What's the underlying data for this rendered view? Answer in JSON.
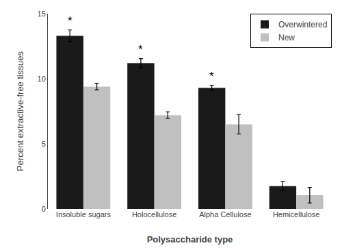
{
  "chart_data": {
    "type": "bar",
    "categories": [
      "Insoluble sugars",
      "Holocellulose",
      "Alpha Cellulose",
      "Hemicellulose"
    ],
    "series": [
      {
        "name": "Overwintered",
        "color": "#1a1a1a",
        "values": [
          13.3,
          11.2,
          9.3,
          1.75
        ],
        "errors": [
          0.45,
          0.35,
          0.2,
          0.35
        ]
      },
      {
        "name": "New",
        "color": "#c0c0c0",
        "values": [
          9.4,
          7.2,
          6.5,
          1.05
        ],
        "errors": [
          0.25,
          0.25,
          0.75,
          0.6
        ]
      }
    ],
    "xlabel": "Polysaccharide type",
    "ylabel": "Percent extractive-free tissues",
    "ylim": [
      0,
      15
    ],
    "yticks": [
      0,
      5,
      10,
      15
    ],
    "grid": false,
    "legend": "upper right",
    "annotations": [
      {
        "text": "*",
        "category": "Insoluble sugars",
        "series": "Overwintered"
      },
      {
        "text": "*",
        "category": "Holocellulose",
        "series": "Overwintered"
      },
      {
        "text": "*",
        "category": "Alpha Cellulose",
        "series": "Overwintered"
      }
    ]
  }
}
